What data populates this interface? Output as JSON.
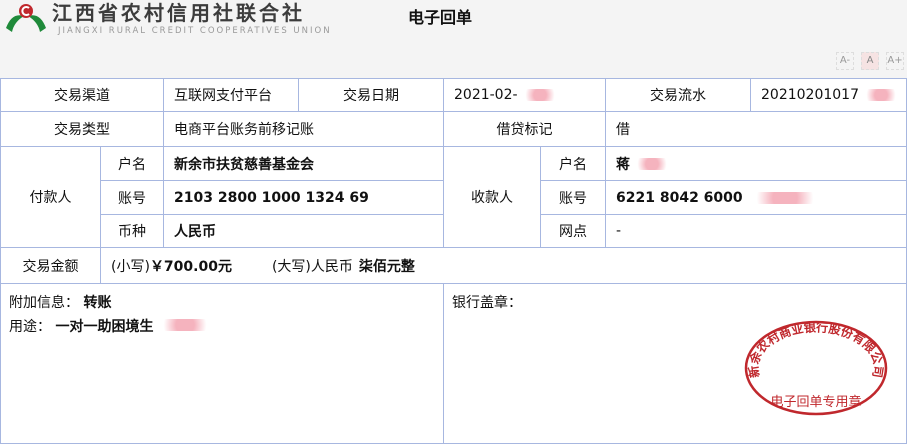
{
  "header": {
    "logo_cn": "江西省农村信用社联合社",
    "logo_en": "JIANGXI RURAL CREDIT COOPERATIVES UNION",
    "title": "电子回单",
    "font_buttons": [
      "A-",
      "A",
      "A+"
    ]
  },
  "row1": {
    "channel_label": "交易渠道",
    "channel": "互联网支付平台",
    "date_label": "交易日期",
    "date": "2021-02-",
    "serial_label": "交易流水",
    "serial": "20210201017"
  },
  "row2": {
    "type_label": "交易类型",
    "type": "电商平台账务前移记账",
    "dc_label": "借贷标记",
    "dc": "借"
  },
  "payer": {
    "label": "付款人",
    "name_label": "户名",
    "name": "新余市扶贫慈善基金会",
    "account_label": "账号",
    "account": "2103 2800 1000 1324 69",
    "currency_label": "币种",
    "currency": "人民币"
  },
  "payee": {
    "label": "收款人",
    "name_label": "户名",
    "name": "蒋",
    "account_label": "账号",
    "account": "6221 8042 6000",
    "branch_label": "网点",
    "branch": "-"
  },
  "amount": {
    "label": "交易金额",
    "small_label": "(小写)",
    "small": "￥700.00元",
    "big_label": "(大写)人民币",
    "big": "柒佰元整"
  },
  "extra": {
    "info_label": "附加信息：",
    "info": "转账",
    "purpose_label": "用途：",
    "purpose": "一对一助困境生",
    "seal_label": "银行盖章："
  },
  "stamp": {
    "org": "新余农村商业银行股份有限公司",
    "text": "电子回单专用章",
    "color": "#c0282d"
  },
  "colors": {
    "border": "#a7b7e0",
    "background": "#f4f4f4"
  }
}
